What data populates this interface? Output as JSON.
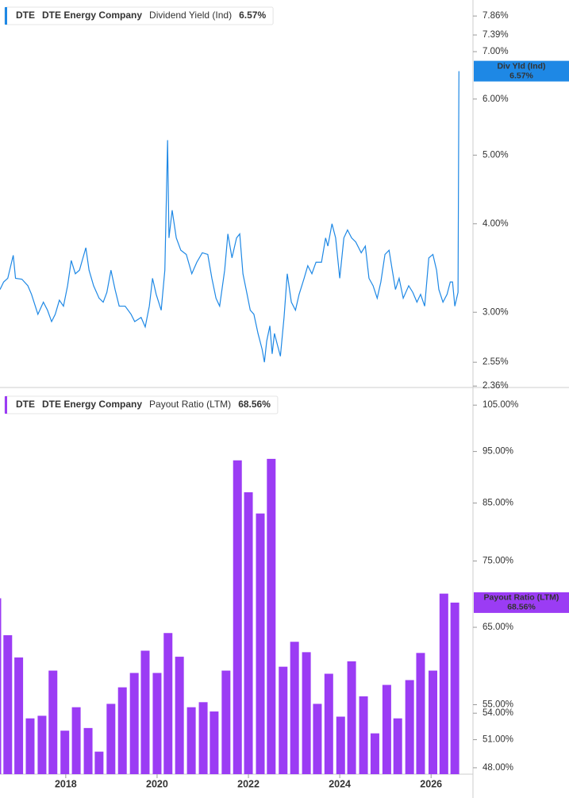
{
  "chart_data": [
    {
      "type": "line",
      "ticker": "DTE",
      "company": "DTE Energy Company",
      "legend_value_label": "6.57%",
      "callout_label": "Div Yld (Ind)",
      "log_scale": true,
      "ylim": [
        2.355,
        8.28
      ],
      "xlim": [
        2016.56,
        2026.9
      ],
      "yticks": [
        {
          "value": 2.36,
          "label": "2.36%"
        },
        {
          "value": 2.55,
          "label": "2.55%"
        },
        {
          "value": 3,
          "label": "3.00%"
        },
        {
          "value": 4,
          "label": "4.00%"
        },
        {
          "value": 5,
          "label": "5.00%"
        },
        {
          "value": 6,
          "label": "6.00%"
        },
        {
          "value": 7,
          "label": "7.00%"
        },
        {
          "value": 7.39,
          "label": "7.39%"
        },
        {
          "value": 7.86,
          "label": "7.86%"
        }
      ],
      "x": [
        2016.56,
        2016.64,
        2016.73,
        2016.85,
        2016.9,
        2017.04,
        2017.17,
        2017.25,
        2017.39,
        2017.51,
        2017.6,
        2017.69,
        2017.77,
        2017.86,
        2017.95,
        2018.04,
        2018.12,
        2018.21,
        2018.3,
        2018.44,
        2018.51,
        2018.61,
        2018.73,
        2018.82,
        2018.9,
        2018.99,
        2019.08,
        2019.17,
        2019.3,
        2019.43,
        2019.51,
        2019.65,
        2019.74,
        2019.83,
        2019.9,
        2019.98,
        2020.09,
        2020.17,
        2020.23,
        2020.26,
        2020.33,
        2020.42,
        2020.52,
        2020.64,
        2020.76,
        2020.87,
        2020.99,
        2021.11,
        2021.2,
        2021.29,
        2021.37,
        2021.48,
        2021.55,
        2021.64,
        2021.74,
        2021.81,
        2021.88,
        2021.95,
        2022.04,
        2022.12,
        2022.21,
        2022.3,
        2022.35,
        2022.4,
        2022.47,
        2022.52,
        2022.57,
        2022.64,
        2022.7,
        2022.78,
        2022.85,
        2022.94,
        2023.03,
        2023.11,
        2023.22,
        2023.3,
        2023.39,
        2023.48,
        2023.6,
        2023.69,
        2023.74,
        2023.83,
        2023.91,
        2024.0,
        2024.09,
        2024.17,
        2024.26,
        2024.35,
        2024.47,
        2024.56,
        2024.64,
        2024.73,
        2024.82,
        2024.9,
        2024.99,
        2025.08,
        2025.15,
        2025.22,
        2025.3,
        2025.39,
        2025.51,
        2025.6,
        2025.69,
        2025.77,
        2025.86,
        2025.95,
        2026.04,
        2026.12,
        2026.17,
        2026.26,
        2026.35,
        2026.42,
        2026.47,
        2026.52,
        2026.56,
        2026.59,
        2026.61
      ],
      "series": [
        {
          "name": "Dividend Yield (Ind)",
          "color": "#1e88e5",
          "values": [
            3.23,
            3.31,
            3.35,
            3.61,
            3.35,
            3.34,
            3.27,
            3.18,
            2.98,
            3.1,
            3.02,
            2.91,
            2.98,
            3.12,
            3.06,
            3.27,
            3.55,
            3.4,
            3.44,
            3.7,
            3.44,
            3.27,
            3.14,
            3.1,
            3.2,
            3.44,
            3.23,
            3.06,
            3.06,
            2.98,
            2.91,
            2.95,
            2.86,
            3.06,
            3.35,
            3.18,
            3.02,
            3.44,
            5.25,
            3.82,
            4.18,
            3.82,
            3.67,
            3.62,
            3.4,
            3.53,
            3.64,
            3.62,
            3.35,
            3.14,
            3.06,
            3.44,
            3.87,
            3.58,
            3.82,
            3.87,
            3.4,
            3.23,
            3.02,
            2.98,
            2.8,
            2.66,
            2.55,
            2.73,
            2.87,
            2.62,
            2.8,
            2.69,
            2.6,
            2.95,
            3.4,
            3.1,
            3.02,
            3.18,
            3.35,
            3.49,
            3.4,
            3.53,
            3.53,
            3.82,
            3.72,
            4.0,
            3.82,
            3.35,
            3.82,
            3.92,
            3.82,
            3.77,
            3.64,
            3.72,
            3.35,
            3.27,
            3.14,
            3.31,
            3.62,
            3.67,
            3.44,
            3.23,
            3.35,
            3.14,
            3.27,
            3.2,
            3.1,
            3.18,
            3.06,
            3.58,
            3.62,
            3.44,
            3.23,
            3.1,
            3.18,
            3.31,
            3.31,
            3.06,
            3.14,
            3.2,
            6.57
          ]
        }
      ]
    },
    {
      "type": "bar",
      "ticker": "DTE",
      "company": "DTE Energy Company",
      "legend_value_label": "68.56%",
      "log_scale": true,
      "ylim": [
        47.34,
        108.7
      ],
      "xlim": [
        2016.56,
        2026.9
      ],
      "yticks": [
        {
          "value": 48,
          "label": "48.00%"
        },
        {
          "value": 51,
          "label": "51.00%"
        },
        {
          "value": 54,
          "label": "54.00%"
        },
        {
          "value": 55,
          "label": "55.00%"
        },
        {
          "value": 65,
          "label": "65.00%"
        },
        {
          "value": 75,
          "label": "75.00%"
        },
        {
          "value": 85,
          "label": "85.00%"
        },
        {
          "value": 95,
          "label": "95.00%"
        },
        {
          "value": 105,
          "label": "105.00%"
        }
      ],
      "xticks": [
        2018,
        2020,
        2022,
        2024,
        2026
      ],
      "x": [
        2016.49,
        2016.73,
        2016.97,
        2017.22,
        2017.48,
        2017.72,
        2017.98,
        2018.23,
        2018.49,
        2018.73,
        2018.99,
        2019.24,
        2019.5,
        2019.74,
        2020.0,
        2020.24,
        2020.49,
        2020.75,
        2021.01,
        2021.25,
        2021.51,
        2021.76,
        2022.0,
        2022.26,
        2022.5,
        2022.76,
        2023.01,
        2023.27,
        2023.51,
        2023.76,
        2024.02,
        2024.26,
        2024.52,
        2024.77,
        2025.03,
        2025.27,
        2025.53,
        2025.77,
        2026.04,
        2026.28,
        2026.52
      ],
      "series": [
        {
          "name": "Payout Ratio (LTM)",
          "color": "#9b3cf4",
          "values": [
            69.2,
            63.9,
            60.9,
            53.4,
            53.7,
            59.2,
            52.0,
            54.7,
            52.3,
            49.7,
            55.1,
            57.1,
            58.9,
            61.8,
            58.9,
            64.2,
            61.0,
            54.7,
            55.3,
            54.2,
            59.2,
            93.2,
            87.0,
            83.1,
            93.5,
            59.7,
            63.0,
            61.6,
            55.1,
            58.8,
            53.6,
            60.4,
            56.0,
            51.7,
            57.4,
            53.4,
            58.0,
            61.5,
            59.2,
            69.9,
            68.56
          ]
        }
      ]
    }
  ]
}
